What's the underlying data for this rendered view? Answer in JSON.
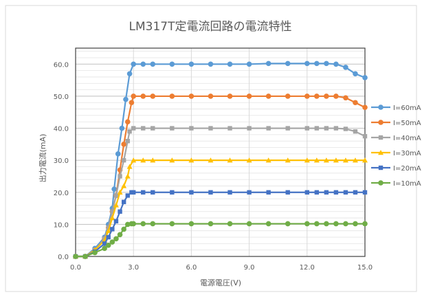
{
  "chart_data": {
    "type": "line",
    "title": "LM317T定電流回路の電流特性",
    "xlabel": "電源電圧(V)",
    "ylabel": "出力電流(mA)",
    "xlim": [
      0,
      15
    ],
    "ylim": [
      0,
      65
    ],
    "xticks": [
      "0.0",
      "3.0",
      "6.0",
      "9.0",
      "12.0",
      "15.0"
    ],
    "yticks": [
      "0.0",
      "10.0",
      "20.0",
      "30.0",
      "40.0",
      "50.0",
      "60.0"
    ],
    "grid": true,
    "legend": "right",
    "series": [
      {
        "name": "I=60mA",
        "color": "#5B9BD5",
        "marker": "circle",
        "x": [
          0,
          0.5,
          1.0,
          1.5,
          1.7,
          1.9,
          2.0,
          2.2,
          2.4,
          2.6,
          2.8,
          3.0,
          3.5,
          4.0,
          5.0,
          6.0,
          7.0,
          8.0,
          9.0,
          10.0,
          11.0,
          12.0,
          12.5,
          13.0,
          13.5,
          14.0,
          14.5,
          15.0
        ],
        "y": [
          0,
          0,
          2.5,
          6.0,
          10.0,
          15.0,
          21.0,
          32.0,
          40.0,
          49.0,
          57.0,
          60.0,
          60.0,
          60.0,
          60.0,
          60.0,
          60.0,
          60.0,
          60.0,
          60.2,
          60.2,
          60.2,
          60.2,
          60.2,
          60.0,
          59.0,
          57.0,
          55.8
        ]
      },
      {
        "name": "I=50mA",
        "color": "#ED7D31",
        "marker": "circle",
        "x": [
          0,
          0.5,
          1.0,
          1.5,
          1.7,
          1.9,
          2.1,
          2.3,
          2.5,
          2.7,
          2.9,
          3.0,
          3.5,
          4.0,
          5.0,
          6.0,
          7.0,
          8.0,
          9.0,
          10.0,
          11.0,
          12.0,
          12.5,
          13.0,
          13.5,
          14.0,
          14.5,
          15.0
        ],
        "y": [
          0,
          0,
          2.0,
          5.5,
          9.0,
          14.0,
          19.0,
          27.0,
          35.0,
          42.0,
          48.0,
          50.0,
          50.0,
          50.0,
          50.0,
          50.0,
          50.0,
          50.0,
          50.0,
          50.0,
          50.0,
          50.0,
          50.0,
          50.0,
          50.0,
          49.5,
          48.0,
          46.5
        ]
      },
      {
        "name": "I=40mA",
        "color": "#A5A5A5",
        "marker": "square",
        "x": [
          0,
          0.5,
          1.0,
          1.5,
          1.7,
          1.9,
          2.1,
          2.3,
          2.5,
          2.7,
          2.8,
          3.0,
          3.5,
          4.0,
          5.0,
          6.0,
          7.0,
          8.0,
          9.0,
          10.0,
          11.0,
          12.0,
          12.5,
          13.0,
          13.5,
          14.0,
          14.5,
          15.0
        ],
        "y": [
          0,
          0,
          2.0,
          5.5,
          9.0,
          14.0,
          19.0,
          25.0,
          30.0,
          36.0,
          39.0,
          40.0,
          40.0,
          40.0,
          40.0,
          40.0,
          40.0,
          40.0,
          40.0,
          40.0,
          40.0,
          40.0,
          40.0,
          40.0,
          40.0,
          39.8,
          39.0,
          37.5
        ]
      },
      {
        "name": "I=30mA",
        "color": "#FFC000",
        "marker": "triangle",
        "x": [
          0,
          0.5,
          1.0,
          1.5,
          1.7,
          1.9,
          2.1,
          2.3,
          2.5,
          2.7,
          2.8,
          3.0,
          3.5,
          4.0,
          5.0,
          6.0,
          7.0,
          8.0,
          9.0,
          10.0,
          11.0,
          12.0,
          12.5,
          13.0,
          13.5,
          14.0,
          14.5,
          15.0
        ],
        "y": [
          0,
          0,
          2.0,
          5.0,
          8.0,
          12.0,
          16.0,
          20.0,
          22.0,
          25.0,
          28.0,
          30.0,
          30.0,
          30.0,
          30.0,
          30.0,
          30.0,
          30.0,
          30.0,
          30.0,
          30.0,
          30.0,
          30.0,
          30.0,
          30.0,
          30.0,
          30.0,
          30.0
        ]
      },
      {
        "name": "I=20mA",
        "color": "#4472C4",
        "marker": "square",
        "x": [
          0,
          0.5,
          1.0,
          1.5,
          1.7,
          1.9,
          2.1,
          2.3,
          2.5,
          2.7,
          2.9,
          3.0,
          3.5,
          4.0,
          5.0,
          6.0,
          7.0,
          8.0,
          9.0,
          10.0,
          11.0,
          12.0,
          12.5,
          13.0,
          13.5,
          14.0,
          14.5,
          15.0
        ],
        "y": [
          0,
          0,
          1.5,
          4.0,
          6.0,
          8.5,
          11.0,
          14.0,
          17.0,
          19.0,
          20.0,
          20.0,
          20.0,
          20.0,
          20.0,
          20.0,
          20.0,
          20.0,
          20.0,
          20.0,
          20.0,
          20.0,
          20.0,
          20.0,
          20.0,
          20.0,
          20.0,
          20.0
        ]
      },
      {
        "name": "I=10mA",
        "color": "#70AD47",
        "marker": "circle",
        "x": [
          0,
          0.5,
          1.0,
          1.5,
          1.7,
          1.9,
          2.1,
          2.3,
          2.5,
          2.7,
          2.9,
          3.0,
          3.5,
          4.0,
          5.0,
          6.0,
          7.0,
          8.0,
          9.0,
          10.0,
          11.0,
          12.0,
          12.5,
          13.0,
          13.5,
          14.0,
          14.5,
          15.0
        ],
        "y": [
          0,
          0,
          1.2,
          2.5,
          3.5,
          4.5,
          5.5,
          6.8,
          8.5,
          10.0,
          10.2,
          10.2,
          10.2,
          10.2,
          10.2,
          10.2,
          10.2,
          10.2,
          10.2,
          10.2,
          10.2,
          10.2,
          10.2,
          10.2,
          10.2,
          10.2,
          10.2,
          10.2
        ]
      }
    ]
  }
}
